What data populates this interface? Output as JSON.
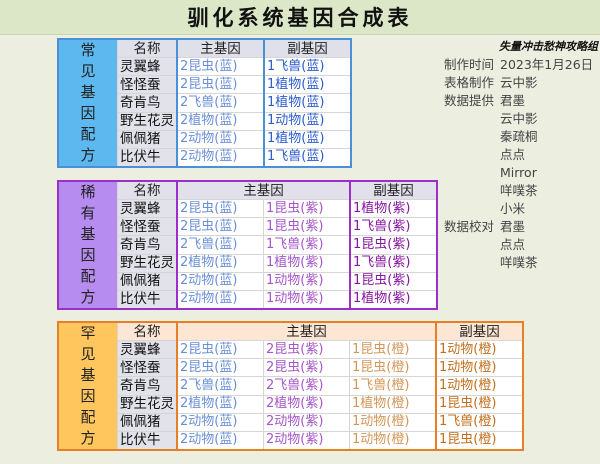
{
  "title": "驯化系统基因合成表",
  "headers": {
    "name": "名称",
    "main": "主基因",
    "sub": "副基因"
  },
  "common": {
    "label": "常见基因配方",
    "rows": [
      {
        "name": "灵翼蜂",
        "main": [
          "2昆虫(蓝)"
        ],
        "sub": "1飞兽(蓝)"
      },
      {
        "name": "怪怪蚕",
        "main": [
          "2昆虫(蓝)"
        ],
        "sub": "1植物(蓝)"
      },
      {
        "name": "奇肯鸟",
        "main": [
          "2飞兽(蓝)"
        ],
        "sub": "1植物(蓝)"
      },
      {
        "name": "野生花灵",
        "main": [
          "2植物(蓝)"
        ],
        "sub": "1动物(蓝)"
      },
      {
        "name": "佩佩猪",
        "main": [
          "2动物(蓝)"
        ],
        "sub": "1植物(蓝)"
      },
      {
        "name": "比伏牛",
        "main": [
          "2动物(蓝)"
        ],
        "sub": "1飞兽(蓝)"
      }
    ]
  },
  "rare": {
    "label": "稀有基因配方",
    "rows": [
      {
        "name": "灵翼蜂",
        "main": [
          "2昆虫(蓝)",
          "1昆虫(紫)"
        ],
        "sub": "1植物(紫)"
      },
      {
        "name": "怪怪蚕",
        "main": [
          "2昆虫(蓝)",
          "1昆虫(紫)"
        ],
        "sub": "1飞兽(紫)"
      },
      {
        "name": "奇肯鸟",
        "main": [
          "2飞兽(蓝)",
          "1飞兽(紫)"
        ],
        "sub": "1昆虫(紫)"
      },
      {
        "name": "野生花灵",
        "main": [
          "2植物(蓝)",
          "1植物(紫)"
        ],
        "sub": "1飞兽(紫)"
      },
      {
        "name": "佩佩猪",
        "main": [
          "2动物(蓝)",
          "1动物(紫)"
        ],
        "sub": "1昆虫(紫)"
      },
      {
        "name": "比伏牛",
        "main": [
          "2动物(蓝)",
          "1动物(紫)"
        ],
        "sub": "1植物(紫)"
      }
    ]
  },
  "epic": {
    "label": "罕见基因配方",
    "rows": [
      {
        "name": "灵翼蜂",
        "main": [
          "2昆虫(蓝)",
          "2昆虫(紫)",
          "1昆虫(橙)"
        ],
        "sub": "1动物(橙)"
      },
      {
        "name": "怪怪蚕",
        "main": [
          "2昆虫(蓝)",
          "2昆虫(紫)",
          "1昆虫(橙)"
        ],
        "sub": "1动物(橙)"
      },
      {
        "name": "奇肯鸟",
        "main": [
          "2飞兽(蓝)",
          "2飞兽(紫)",
          "1飞兽(橙)"
        ],
        "sub": "1动物(橙)"
      },
      {
        "name": "野生花灵",
        "main": [
          "2植物(蓝)",
          "2植物(紫)",
          "1植物(橙)"
        ],
        "sub": "1昆虫(橙)"
      },
      {
        "name": "佩佩猪",
        "main": [
          "2动物(蓝)",
          "2动物(紫)",
          "1动物(橙)"
        ],
        "sub": "1飞兽(橙)"
      },
      {
        "name": "比伏牛",
        "main": [
          "2动物(蓝)",
          "2动物(紫)",
          "1动物(橙)"
        ],
        "sub": "1昆虫(橙)"
      }
    ]
  },
  "info": {
    "org": "失量冲击愁神攻略组",
    "rows": [
      {
        "k": "制作时间",
        "v": "2023年1月26日"
      },
      {
        "k": "表格制作",
        "v": "云中影"
      },
      {
        "k": "数据提供",
        "v": "君墨"
      },
      {
        "k": "",
        "v": "云中影"
      },
      {
        "k": "",
        "v": "秦疏桐"
      },
      {
        "k": "",
        "v": "点点"
      },
      {
        "k": "",
        "v": "Mirror"
      },
      {
        "k": "",
        "v": "咩噗茶"
      },
      {
        "k": "",
        "v": "小米"
      },
      {
        "k": "数据校对",
        "v": "君墨"
      },
      {
        "k": "",
        "v": "点点"
      },
      {
        "k": "",
        "v": "咩噗茶"
      }
    ]
  },
  "colors": {
    "blue": "#4a8fd8",
    "purple": "#9b2fc8",
    "orange": "#e67f26"
  }
}
